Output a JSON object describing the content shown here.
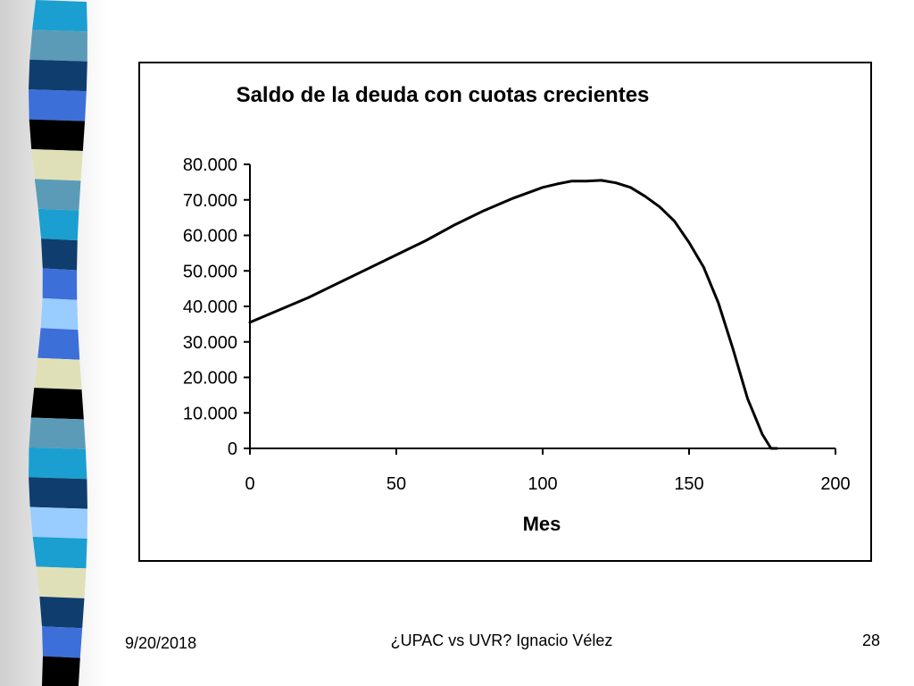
{
  "slide": {
    "date": "9/20/2018",
    "footer_title": "¿UPAC vs UVR? Ignacio Vélez",
    "page_number": "28"
  },
  "colors": {
    "stripe": [
      "#1a9fd0",
      "#5b9bb8",
      "#0f3d6e",
      "#3d6fd9",
      "#000000",
      "#e0e0b8",
      "#5b9bb8",
      "#1a9fd0",
      "#0f3d6e",
      "#3d6fd9",
      "#99ccff",
      "#3d6fd9",
      "#e0e0b8",
      "#000000",
      "#5b9bb8",
      "#1a9fd0",
      "#0f3d6e",
      "#99ccff",
      "#1a9fd0",
      "#e0e0b8",
      "#0f3d6e",
      "#3d6fd9",
      "#000000"
    ],
    "line": "#000000"
  },
  "chart_data": {
    "type": "line",
    "title": "Saldo de la deuda con cuotas crecientes",
    "xlabel": "Mes",
    "ylabel": "",
    "xlim": [
      0,
      200
    ],
    "ylim": [
      0,
      80000
    ],
    "x_ticks": [
      "0",
      "50",
      "100",
      "150",
      "200"
    ],
    "y_ticks": [
      "0",
      "10.000",
      "20.000",
      "30.000",
      "40.000",
      "50.000",
      "60.000",
      "70.000",
      "80.000"
    ],
    "grid": false,
    "legend": false,
    "series": [
      {
        "x": [
          0,
          10,
          20,
          30,
          40,
          50,
          60,
          70,
          80,
          90,
          100,
          105,
          110,
          115,
          120,
          125,
          130,
          135,
          140,
          145,
          150,
          155,
          160,
          165,
          170,
          172,
          175,
          178,
          180
        ],
        "y": [
          35500,
          39000,
          42500,
          46500,
          50500,
          54500,
          58500,
          63000,
          67000,
          70500,
          73500,
          74500,
          75300,
          75300,
          75500,
          74800,
          73500,
          71000,
          68000,
          64000,
          58000,
          51000,
          41000,
          28000,
          14000,
          10000,
          4000,
          0,
          0
        ]
      }
    ]
  }
}
